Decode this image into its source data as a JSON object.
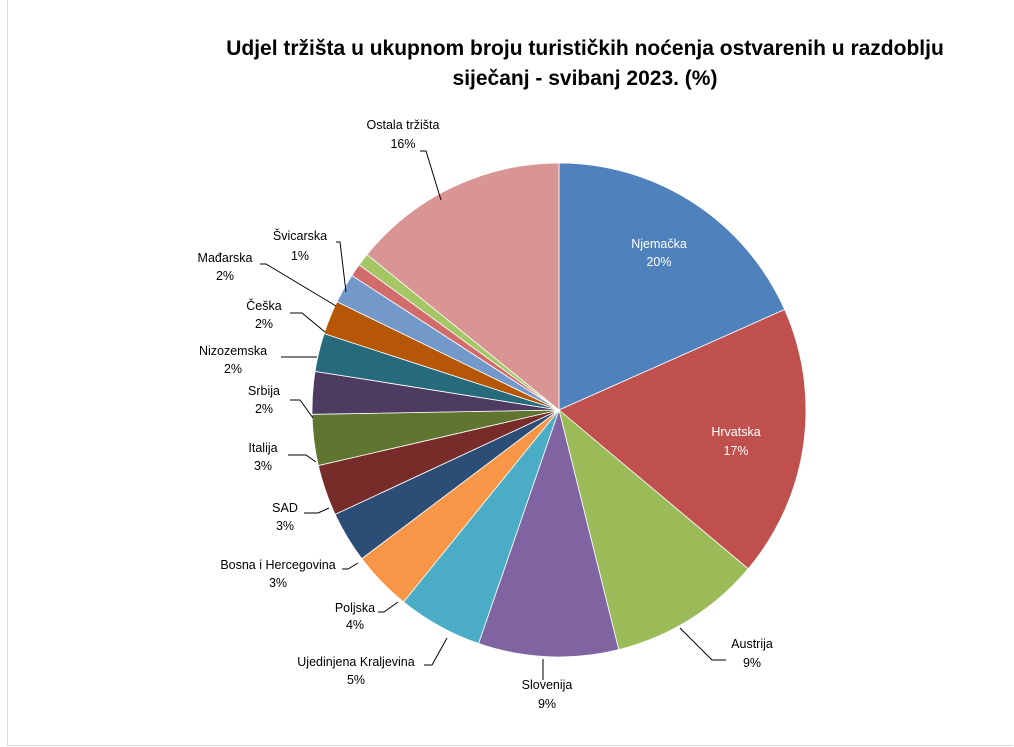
{
  "chart_data": {
    "type": "pie",
    "title": "Udjel tržišta u ukupnom broju turističkih noćenja ostvarenih u razdoblju siječanj - svibanj 2023. (%)",
    "title_lines": [
      "Udjel tržišta u ukupnom broju turističkih noćenja ostvarenih u razdoblju",
      "siječanj - svibanj 2023. (%)"
    ],
    "slices": [
      {
        "name": "Njemačka",
        "value": 20,
        "label": "20%",
        "color": "#4F81BD"
      },
      {
        "name": "Hrvatska",
        "value": 17,
        "label": "17%",
        "color": "#C0504D"
      },
      {
        "name": "Austrija",
        "value": 9,
        "label": "9%",
        "color": "#9BBB59"
      },
      {
        "name": "Slovenija",
        "value": 9,
        "label": "9%",
        "color": "#8064A2"
      },
      {
        "name": "Ujedinjena Kraljevina",
        "value": 5,
        "label": "5%",
        "color": "#4BACC6"
      },
      {
        "name": "Poljska",
        "value": 4,
        "label": "4%",
        "color": "#F79646"
      },
      {
        "name": "Bosna i Hercegovina",
        "value": 3,
        "label": "3%",
        "color": "#2C4D75"
      },
      {
        "name": "SAD",
        "value": 3,
        "label": "3%",
        "color": "#772C2A"
      },
      {
        "name": "Italija",
        "value": 3,
        "label": "3%",
        "color": "#5F7530"
      },
      {
        "name": "Srbija",
        "value": 2,
        "label": "2%",
        "color": "#4D3B62"
      },
      {
        "name": "Nizozemska",
        "value": 2,
        "label": "2%",
        "color": "#276A7C"
      },
      {
        "name": "Češka",
        "value": 2,
        "label": "2%",
        "color": "#B65708"
      },
      {
        "name": "Mađarska",
        "value": 2,
        "label": "2%",
        "color": "#729ACA"
      },
      {
        "name": "Švicarska",
        "value": 1,
        "label": "1%",
        "color": "#CD7371"
      },
      {
        "name": "Ostala tržišta",
        "value": 16,
        "label": "16%",
        "color": "#D99594"
      }
    ],
    "slice_colors_observed_order_note": "",
    "legend": "none"
  }
}
